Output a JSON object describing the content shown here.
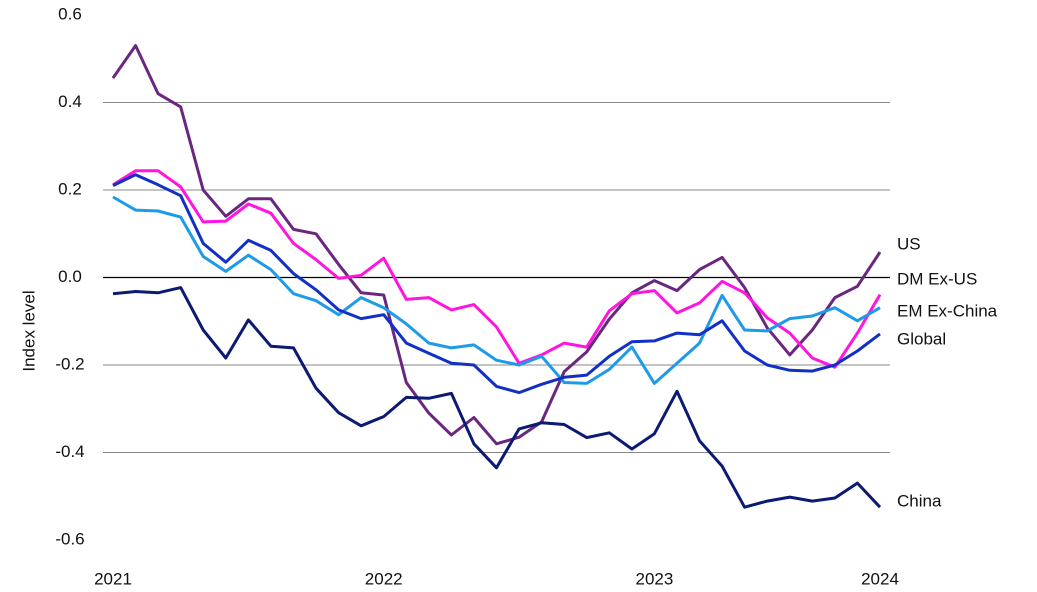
{
  "chart_data": {
    "type": "line",
    "y_label": "Index level",
    "categories": [
      "2021",
      null,
      null,
      null,
      null,
      null,
      null,
      null,
      null,
      null,
      null,
      null,
      "2022",
      null,
      null,
      null,
      null,
      null,
      null,
      null,
      null,
      null,
      null,
      null,
      "2023",
      null,
      null,
      null,
      null,
      null,
      null,
      null,
      null,
      null,
      "2024"
    ],
    "ylim": [
      -0.6,
      0.6
    ],
    "yticks": [
      0.6,
      0.4,
      0.2,
      {
        "value": 0,
        "label": "0.0"
      },
      -0.2,
      -0.4,
      -0.6
    ],
    "grid": true,
    "series": [
      {
        "name": "US",
        "color": "#6a2780",
        "values": [
          0.456,
          0.53,
          0.42,
          0.39,
          0.2,
          0.14,
          0.18,
          0.18,
          0.11,
          0.1,
          0.03,
          -0.035,
          -0.04,
          -0.24,
          -0.31,
          -0.36,
          -0.32,
          -0.38,
          -0.365,
          -0.33,
          -0.215,
          -0.17,
          -0.095,
          -0.035,
          -0.007,
          -0.03,
          0.018,
          0.046,
          -0.023,
          -0.115,
          -0.177,
          -0.12,
          -0.046,
          -0.02,
          0.058
        ]
      },
      {
        "name": "DM Ex-US",
        "color": "#ff14e0",
        "values": [
          0.212,
          0.244,
          0.244,
          0.207,
          0.127,
          0.129,
          0.168,
          0.147,
          0.078,
          0.041,
          -0.002,
          0.005,
          0.044,
          -0.05,
          -0.046,
          -0.074,
          -0.062,
          -0.113,
          -0.196,
          -0.177,
          -0.15,
          -0.159,
          -0.076,
          -0.037,
          -0.03,
          -0.081,
          -0.058,
          -0.009,
          -0.035,
          -0.092,
          -0.127,
          -0.184,
          -0.205,
          -0.127,
          -0.039
        ]
      },
      {
        "name": "EM Ex-China",
        "color": "#1e9be8",
        "values": [
          0.184,
          0.154,
          0.152,
          0.138,
          0.048,
          0.014,
          0.051,
          0.018,
          -0.037,
          -0.053,
          -0.085,
          -0.046,
          -0.069,
          -0.106,
          -0.15,
          -0.161,
          -0.154,
          -0.189,
          -0.2,
          -0.18,
          -0.24,
          -0.242,
          -0.21,
          -0.159,
          -0.242,
          -0.196,
          -0.15,
          -0.041,
          -0.12,
          -0.122,
          -0.094,
          -0.088,
          -0.069,
          -0.099,
          -0.069
        ]
      },
      {
        "name": "Global",
        "color": "#1230c4",
        "values": [
          0.21,
          0.235,
          0.212,
          0.187,
          0.078,
          0.035,
          0.085,
          0.062,
          0.009,
          -0.028,
          -0.074,
          -0.094,
          -0.085,
          -0.15,
          -0.173,
          -0.196,
          -0.2,
          -0.249,
          -0.263,
          -0.244,
          -0.228,
          -0.223,
          -0.18,
          -0.147,
          -0.145,
          -0.127,
          -0.131,
          -0.099,
          -0.168,
          -0.2,
          -0.212,
          -0.214,
          -0.2,
          -0.168,
          -0.129
        ]
      },
      {
        "name": "China",
        "color": "#0b1a72",
        "values": [
          -0.037,
          -0.032,
          -0.035,
          -0.023,
          -0.12,
          -0.184,
          -0.097,
          -0.157,
          -0.161,
          -0.253,
          -0.309,
          -0.339,
          -0.318,
          -0.274,
          -0.276,
          -0.265,
          -0.38,
          -0.435,
          -0.346,
          -0.332,
          -0.336,
          -0.366,
          -0.355,
          -0.392,
          -0.357,
          -0.26,
          -0.373,
          -0.431,
          -0.525,
          -0.511,
          -0.502,
          -0.511,
          -0.504,
          -0.47,
          -0.525
        ]
      }
    ]
  }
}
